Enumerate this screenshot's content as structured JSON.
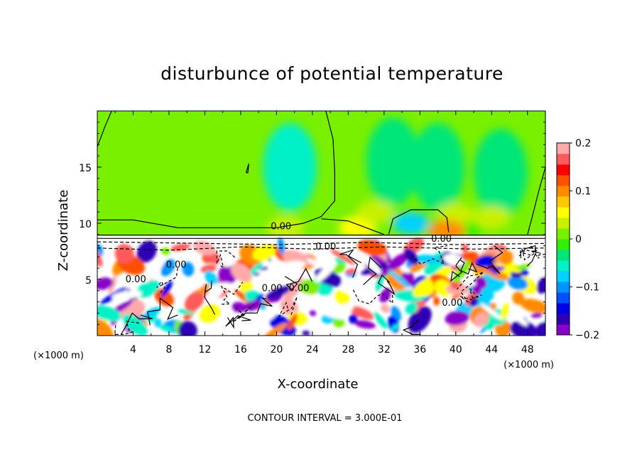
{
  "chart_data": {
    "type": "heatmap",
    "title": "disturbunce of potential temperature",
    "xlabel": "X-coordinate",
    "ylabel": "Z-coordinate",
    "x_unit": "(×1000 m)",
    "footer": "CONTOUR INTERVAL = 3.000E-01",
    "xlim": [
      0,
      50
    ],
    "ylim": [
      0,
      20
    ],
    "x_ticks": [
      4,
      8,
      12,
      16,
      20,
      24,
      28,
      32,
      36,
      40,
      44,
      48
    ],
    "x_tick_labels": [
      "4",
      "8",
      "12",
      "16",
      "20",
      "24",
      "28",
      "32",
      "36",
      "40",
      "44",
      "48"
    ],
    "y_ticks": [
      5,
      10,
      15
    ],
    "y_tick_labels": [
      "5",
      "10",
      "15"
    ],
    "colorbar": {
      "range": [
        -0.2,
        0.2
      ],
      "ticks": [
        0.2,
        0.1,
        0,
        -0.1,
        -0.2
      ],
      "tick_labels": [
        "0.2",
        "0.1",
        "0",
        "−0.1",
        "−0.2"
      ],
      "colors": [
        "#8b00c8",
        "#2d00b4",
        "#0000e6",
        "#0050ff",
        "#0096ff",
        "#00d2ff",
        "#00f0c8",
        "#00e678",
        "#32f000",
        "#78f000",
        "#c8f000",
        "#ffff00",
        "#ffc800",
        "#ff8c00",
        "#ff5000",
        "#ff0000",
        "#ff5a5a",
        "#ffaaaa"
      ]
    },
    "contour_labels": [
      {
        "text": "0.00",
        "x": 20.5,
        "z": 9.7
      },
      {
        "text": "0.00",
        "x": 25.5,
        "z": 7.9
      },
      {
        "text": "0.00",
        "x": 8.8,
        "z": 6.3
      },
      {
        "text": "0.00",
        "x": 4.3,
        "z": 5.0
      },
      {
        "text": "0.00",
        "x": 19.5,
        "z": 4.2
      },
      {
        "text": "0.00",
        "x": 22.5,
        "z": 4.2
      },
      {
        "text": "0.00",
        "x": 39.6,
        "z": 2.9
      },
      {
        "text": "0.00",
        "x": 38.4,
        "z": 8.6
      }
    ],
    "features": {
      "upper_layer_level": 0,
      "interface_z": 8.9,
      "upper_negative_blobs": [
        {
          "x": 21.5,
          "z": 15.0,
          "value": -0.05
        },
        {
          "x": 33.0,
          "z": 15.5,
          "value": -0.04
        },
        {
          "x": 38.0,
          "z": 15.0,
          "value": -0.03
        },
        {
          "x": 35.0,
          "z": 10.0,
          "value": -0.08
        },
        {
          "x": 41.0,
          "z": 9.5,
          "value": -0.02
        },
        {
          "x": 45.0,
          "z": 14.5,
          "value": -0.03
        }
      ],
      "upper_positive_blobs": [
        {
          "x": 29.0,
          "z": 9.6,
          "value": 0.06
        },
        {
          "x": 31.0,
          "z": 11.0,
          "value": 0.03
        },
        {
          "x": 40.0,
          "z": 10.8,
          "value": 0.03
        },
        {
          "x": 44.0,
          "z": 10.5,
          "value": 0.04
        },
        {
          "x": 39.0,
          "z": 9.3,
          "value": 0.1
        },
        {
          "x": 21.0,
          "z": 9.6,
          "value": 0.03
        }
      ],
      "lower_field_note": "saturated turbulent mixing layer below z≈8.5 km with values from −0.2 to 0.2"
    }
  }
}
